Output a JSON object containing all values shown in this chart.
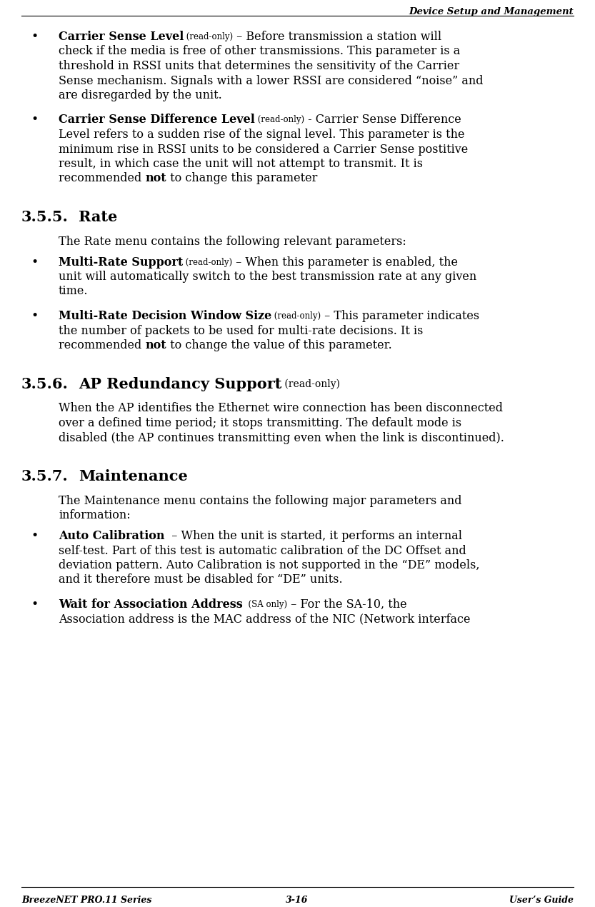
{
  "header_text": "Device Setup and Management",
  "footer_left": "BreezeNET PRO.11 Series",
  "footer_center": "3-16",
  "footer_right": "User’s Guide",
  "bg_color": "#ffffff",
  "lines": [
    {
      "type": "header_gap"
    },
    {
      "type": "bullet_line1",
      "segments": [
        {
          "t": "Carrier Sense Level",
          "bold": true,
          "small": false
        },
        {
          "t": " (read-only)",
          "bold": false,
          "small": true
        },
        {
          "t": " – Before transmission a station will",
          "bold": false,
          "small": false
        }
      ]
    },
    {
      "type": "bullet_cont",
      "text": "check if the media is free of other transmissions. This parameter is a"
    },
    {
      "type": "bullet_cont",
      "text": "threshold in RSSI units that determines the sensitivity of the Carrier"
    },
    {
      "type": "bullet_cont",
      "text": "Sense mechanism. Signals with a lower RSSI are considered “noise” and"
    },
    {
      "type": "bullet_cont",
      "text": "are disregarded by the unit."
    },
    {
      "type": "bullet_gap"
    },
    {
      "type": "bullet_line1",
      "segments": [
        {
          "t": "Carrier Sense Difference Level",
          "bold": true,
          "small": false
        },
        {
          "t": " (read-only)",
          "bold": false,
          "small": true
        },
        {
          "t": " - Carrier Sense Difference",
          "bold": false,
          "small": false
        }
      ]
    },
    {
      "type": "bullet_cont",
      "text": "Level refers to a sudden rise of the signal level. This parameter is the"
    },
    {
      "type": "bullet_cont",
      "text": "minimum rise in RSSI units to be considered a Carrier Sense postitive"
    },
    {
      "type": "bullet_cont",
      "text": "result, in which case the unit will not attempt to transmit. It is"
    },
    {
      "type": "bullet_cont_mixed",
      "before": "recommended ",
      "bold": "not",
      "after": " to change this parameter"
    },
    {
      "type": "section_gap_large"
    },
    {
      "type": "section",
      "number": "3.5.5.",
      "title": "Rate",
      "title_small": ""
    },
    {
      "type": "section_gap_small"
    },
    {
      "type": "para",
      "text": "The Rate menu contains the following relevant parameters:"
    },
    {
      "type": "bullet_gap_small"
    },
    {
      "type": "bullet_line1",
      "segments": [
        {
          "t": "Multi-Rate Support",
          "bold": true,
          "small": false
        },
        {
          "t": " (read-only)",
          "bold": false,
          "small": true
        },
        {
          "t": " – When this parameter is enabled, the",
          "bold": false,
          "small": false
        }
      ]
    },
    {
      "type": "bullet_cont",
      "text": "unit will automatically switch to the best transmission rate at any given"
    },
    {
      "type": "bullet_cont",
      "text": "time."
    },
    {
      "type": "bullet_gap"
    },
    {
      "type": "bullet_line1",
      "segments": [
        {
          "t": "Multi-Rate Decision Window Size",
          "bold": true,
          "small": false
        },
        {
          "t": " (read-only)",
          "bold": false,
          "small": true
        },
        {
          "t": " – This parameter indicates",
          "bold": false,
          "small": false
        }
      ]
    },
    {
      "type": "bullet_cont",
      "text": "the number of packets to be used for multi-rate decisions. It is"
    },
    {
      "type": "bullet_cont_mixed",
      "before": "recommended ",
      "bold": "not",
      "after": " to change the value of this parameter."
    },
    {
      "type": "section_gap_large"
    },
    {
      "type": "section",
      "number": "3.5.6.",
      "title": "AP Redundancy Support",
      "title_small": " (read-only)"
    },
    {
      "type": "section_gap_small"
    },
    {
      "type": "para",
      "text": "When the AP identifies the Ethernet wire connection has been disconnected"
    },
    {
      "type": "para_cont",
      "text": "over a defined time period; it stops transmitting. The default mode is"
    },
    {
      "type": "para_cont",
      "text": "disabled (the AP continues transmitting even when the link is discontinued)."
    },
    {
      "type": "section_gap_large"
    },
    {
      "type": "section",
      "number": "3.5.7.",
      "title": "Maintenance",
      "title_small": ""
    },
    {
      "type": "section_gap_small"
    },
    {
      "type": "para",
      "text": "The Maintenance menu contains the following major parameters and"
    },
    {
      "type": "para_cont",
      "text": "information:"
    },
    {
      "type": "bullet_gap_small"
    },
    {
      "type": "bullet_line1",
      "segments": [
        {
          "t": "Auto Calibration",
          "bold": true,
          "small": false
        },
        {
          "t": "  – When the unit is started, it performs an internal",
          "bold": false,
          "small": false
        }
      ]
    },
    {
      "type": "bullet_cont",
      "text": "self-test. Part of this test is automatic calibration of the DC Offset and"
    },
    {
      "type": "bullet_cont",
      "text": "deviation pattern. Auto Calibration is not supported in the “DE” models,"
    },
    {
      "type": "bullet_cont",
      "text": "and it therefore must be disabled for “DE” units."
    },
    {
      "type": "bullet_gap"
    },
    {
      "type": "bullet_line1",
      "segments": [
        {
          "t": "Wait for Association Address",
          "bold": true,
          "small": false
        },
        {
          "t": "  (SA only)",
          "bold": false,
          "small": true
        },
        {
          "t": " – For the SA-10, the",
          "bold": false,
          "small": false
        }
      ]
    },
    {
      "type": "bullet_cont",
      "text": "Association address is the MAC address of the NIC (Network interface"
    }
  ]
}
